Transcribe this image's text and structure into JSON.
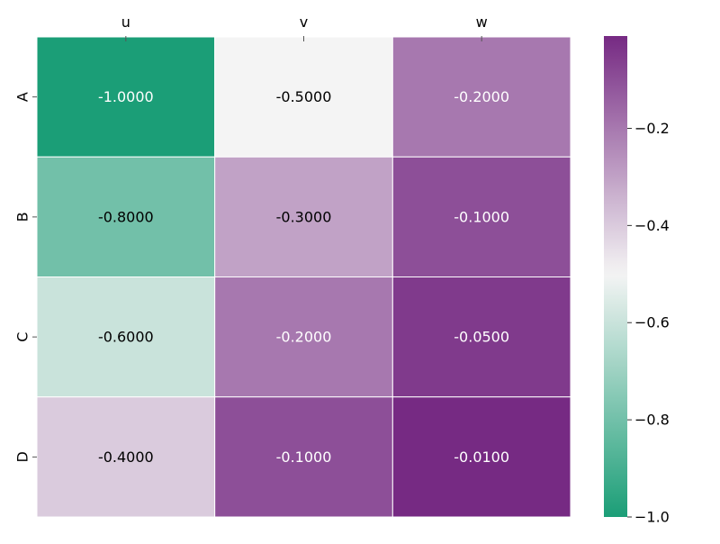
{
  "chart_data": {
    "type": "heatmap",
    "title": "",
    "xlabel": "",
    "ylabel": "",
    "x_categories": [
      "u",
      "v",
      "w"
    ],
    "y_categories": [
      "A",
      "B",
      "C",
      "D"
    ],
    "x_axis_position": "top",
    "values": [
      [
        -1.0,
        -0.5,
        -0.2
      ],
      [
        -0.8,
        -0.3,
        -0.1
      ],
      [
        -0.6,
        -0.2,
        -0.05
      ],
      [
        -0.4,
        -0.1,
        -0.01
      ]
    ],
    "cell_labels": [
      [
        "-1.0000",
        "-0.5000",
        "-0.2000"
      ],
      [
        "-0.8000",
        "-0.3000",
        "-0.1000"
      ],
      [
        "-0.6000",
        "-0.2000",
        "-0.0500"
      ],
      [
        "-0.4000",
        "-0.1000",
        "-0.0100"
      ]
    ],
    "colorbar": {
      "min": -1.0,
      "max": -0.01,
      "center": -0.5,
      "ticks": [
        -1.0,
        -0.8,
        -0.6,
        -0.4,
        -0.2
      ],
      "tick_labels": [
        "−1.0",
        "−0.8",
        "−0.6",
        "−0.4",
        "−0.2"
      ],
      "colormap": "diverging green-white-purple",
      "low_color": "#1b9e77",
      "mid_color": "#f4f4f4",
      "high_color": "#762a83",
      "position": "right"
    },
    "grid": false
  }
}
